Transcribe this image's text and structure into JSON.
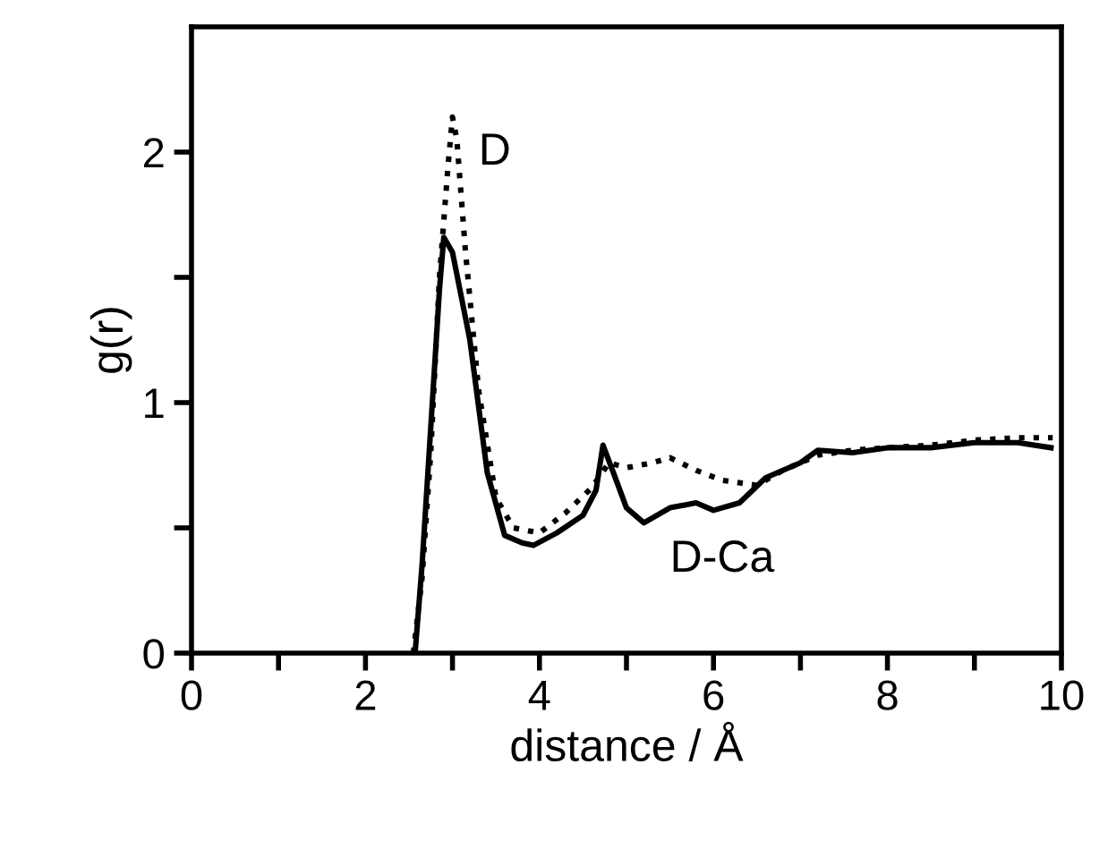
{
  "chart_data": {
    "type": "line",
    "xlabel": "distance / Å",
    "ylabel": "g(r)",
    "xlim": [
      0,
      10
    ],
    "ylim": [
      0,
      2.5
    ],
    "xticks": [
      0,
      {
        "value": 1,
        "label": null
      },
      2,
      {
        "value": 3,
        "label": null
      },
      4,
      {
        "value": 5,
        "label": null
      },
      6,
      {
        "value": 7,
        "label": null
      },
      8,
      {
        "value": 9,
        "label": null
      },
      10
    ],
    "yticks": [
      0,
      {
        "value": 0.5,
        "label": null
      },
      1,
      {
        "value": 1.5,
        "label": null
      },
      2
    ],
    "grid": false,
    "legend": false,
    "marker": "none",
    "series": [
      {
        "color": "#000000",
        "line_style": "dotted",
        "x": [
          2.55,
          2.65,
          2.75,
          2.85,
          2.95,
          3.0,
          3.05,
          3.15,
          3.3,
          3.5,
          3.7,
          4.0,
          4.3,
          4.6,
          4.8,
          5.0,
          5.3,
          5.5,
          5.8,
          6.1,
          6.5,
          6.8,
          7.2,
          7.6,
          8.0,
          8.5,
          9.0,
          9.5,
          9.9
        ],
        "values": [
          0,
          0.3,
          0.8,
          1.5,
          1.95,
          2.14,
          2.05,
          1.6,
          1.05,
          0.62,
          0.5,
          0.48,
          0.56,
          0.66,
          0.76,
          0.74,
          0.76,
          0.78,
          0.73,
          0.69,
          0.67,
          0.73,
          0.79,
          0.81,
          0.82,
          0.83,
          0.85,
          0.86,
          0.86
        ]
      },
      {
        "color": "#000000",
        "line_style": "solid",
        "x": [
          2.57,
          2.65,
          2.75,
          2.85,
          2.9,
          3.0,
          3.2,
          3.4,
          3.6,
          3.8,
          3.93,
          4.2,
          4.5,
          4.65,
          4.73,
          4.85,
          5.0,
          5.2,
          5.5,
          5.8,
          6.0,
          6.3,
          6.6,
          7.0,
          7.2,
          7.6,
          8.0,
          8.5,
          9.0,
          9.5,
          9.88
        ],
        "values": [
          0,
          0.35,
          0.9,
          1.45,
          1.66,
          1.6,
          1.25,
          0.72,
          0.47,
          0.44,
          0.43,
          0.48,
          0.55,
          0.65,
          0.83,
          0.72,
          0.58,
          0.52,
          0.58,
          0.6,
          0.57,
          0.6,
          0.7,
          0.76,
          0.81,
          0.8,
          0.82,
          0.82,
          0.84,
          0.84,
          0.82
        ]
      }
    ],
    "annotations": [
      "D",
      "D-Ca"
    ]
  }
}
